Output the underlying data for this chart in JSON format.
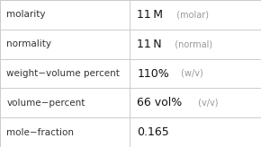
{
  "rows": [
    {
      "label": "molarity",
      "value_bold": "11 M",
      "value_light": "  (molar)"
    },
    {
      "label": "normality",
      "value_bold": "11 N",
      "value_light": "  (normal)"
    },
    {
      "label": "weight−volume percent",
      "value_bold": "110%",
      "value_light": " (w/v)"
    },
    {
      "label": "volume−percent",
      "value_bold": "66 vol%",
      "value_light": " (v/v)"
    },
    {
      "label": "mole−fraction",
      "value_bold": "0.165",
      "value_light": ""
    }
  ],
  "col_split": 0.495,
  "background": "#ffffff",
  "grid_color": "#cccccc",
  "label_color": "#333333",
  "value_bold_color": "#111111",
  "value_light_color": "#999999",
  "label_fontsize": 7.5,
  "value_bold_fontsize": 9.0,
  "value_light_fontsize": 7.0
}
